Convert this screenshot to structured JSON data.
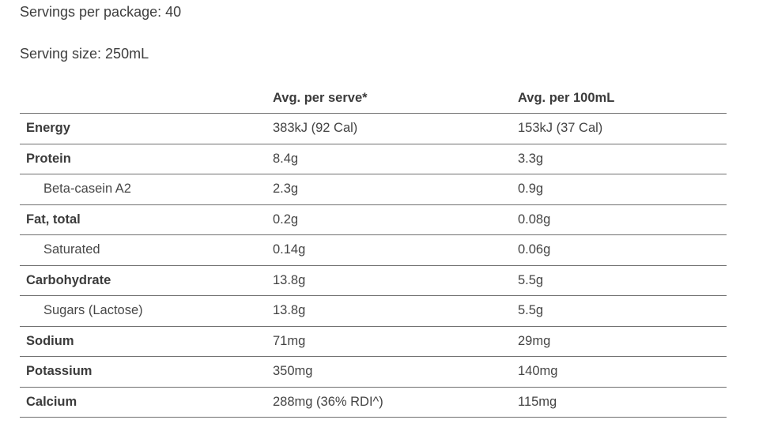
{
  "intro": {
    "servings_per_package": "Servings per package: 40",
    "serving_size": "Serving size: 250mL"
  },
  "table": {
    "columns": {
      "label": "",
      "per_serve": "Avg. per serve*",
      "per_100ml": "Avg. per 100mL"
    },
    "rows": [
      {
        "label": "Energy",
        "style": "main",
        "per_serve": "383kJ (92 Cal)",
        "per_100ml": "153kJ (37 Cal)"
      },
      {
        "label": "Protein",
        "style": "main",
        "per_serve": "8.4g",
        "per_100ml": "3.3g"
      },
      {
        "label": "Beta-casein A2",
        "style": "sub",
        "per_serve": "2.3g",
        "per_100ml": "0.9g"
      },
      {
        "label": "Fat, total",
        "style": "main",
        "per_serve": "0.2g",
        "per_100ml": "0.08g"
      },
      {
        "label": "Saturated",
        "style": "sub",
        "per_serve": "0.14g",
        "per_100ml": "0.06g"
      },
      {
        "label": "Carbohydrate",
        "style": "main",
        "per_serve": "13.8g",
        "per_100ml": "5.5g"
      },
      {
        "label": "Sugars (Lactose)",
        "style": "sub",
        "per_serve": "13.8g",
        "per_100ml": "5.5g"
      },
      {
        "label": "Sodium",
        "style": "main",
        "per_serve": "71mg",
        "per_100ml": "29mg"
      },
      {
        "label": "Potassium",
        "style": "main",
        "per_serve": "350mg",
        "per_100ml": "140mg"
      },
      {
        "label": "Calcium",
        "style": "main",
        "per_serve": "288mg (36% RDI^)",
        "per_100ml": "115mg"
      }
    ],
    "colors": {
      "text": "#414141",
      "bold_text": "#3b3b3b",
      "rule": "#6f6f6f",
      "background": "#ffffff"
    }
  }
}
